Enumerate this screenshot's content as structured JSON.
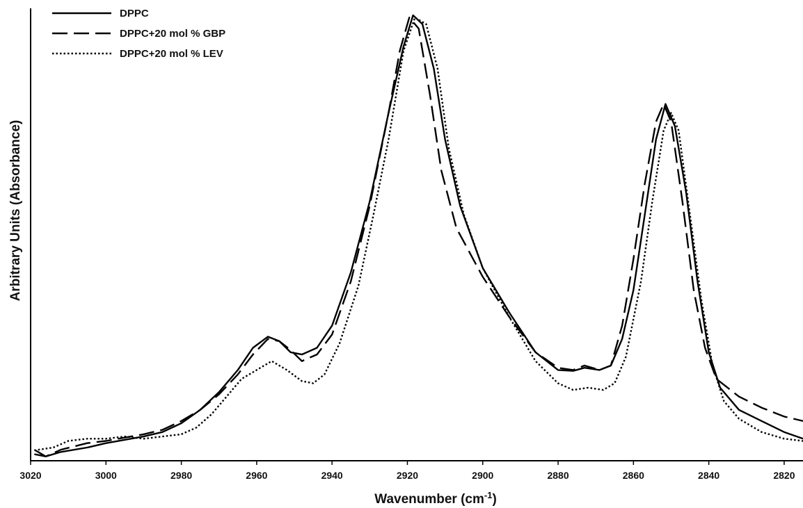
{
  "chart_data": {
    "type": "line",
    "title": "",
    "xlabel": "Wavenumber (cm⁻¹)",
    "ylabel": "Arbitrary Units (Absorbance)",
    "xlim": [
      3020,
      2815
    ],
    "x_reversed": true,
    "ylim": [
      0,
      1.0
    ],
    "y_tick_labels": false,
    "x_ticks": [
      3020,
      3000,
      2980,
      2960,
      2940,
      2920,
      2900,
      2880,
      2860,
      2840,
      2820
    ],
    "grid": false,
    "legend": {
      "placement": "top-left"
    },
    "series": [
      {
        "name": "DPPC",
        "style": "solid",
        "points": [
          [
            3019,
            0.02
          ],
          [
            3016,
            0.005
          ],
          [
            3012,
            0.015
          ],
          [
            3005,
            0.025
          ],
          [
            3000,
            0.035
          ],
          [
            2990,
            0.05
          ],
          [
            2985,
            0.06
          ],
          [
            2980,
            0.08
          ],
          [
            2975,
            0.11
          ],
          [
            2970,
            0.15
          ],
          [
            2965,
            0.2
          ],
          [
            2961,
            0.25
          ],
          [
            2957,
            0.275
          ],
          [
            2954,
            0.265
          ],
          [
            2951,
            0.24
          ],
          [
            2948,
            0.235
          ],
          [
            2944,
            0.25
          ],
          [
            2940,
            0.3
          ],
          [
            2935,
            0.42
          ],
          [
            2930,
            0.58
          ],
          [
            2925,
            0.78
          ],
          [
            2921,
            0.93
          ],
          [
            2918.5,
            1.0
          ],
          [
            2916,
            0.98
          ],
          [
            2913,
            0.88
          ],
          [
            2910,
            0.72
          ],
          [
            2906,
            0.57
          ],
          [
            2900,
            0.43
          ],
          [
            2893,
            0.33
          ],
          [
            2886,
            0.24
          ],
          [
            2880,
            0.2
          ],
          [
            2876,
            0.198
          ],
          [
            2873,
            0.205
          ],
          [
            2869,
            0.2
          ],
          [
            2866,
            0.21
          ],
          [
            2863,
            0.27
          ],
          [
            2860,
            0.38
          ],
          [
            2857,
            0.55
          ],
          [
            2854,
            0.72
          ],
          [
            2851.5,
            0.8
          ],
          [
            2849,
            0.75
          ],
          [
            2846,
            0.6
          ],
          [
            2843,
            0.4
          ],
          [
            2840,
            0.24
          ],
          [
            2837,
            0.16
          ],
          [
            2832,
            0.11
          ],
          [
            2826,
            0.085
          ],
          [
            2820,
            0.06
          ],
          [
            2815,
            0.045
          ]
        ]
      },
      {
        "name": "DPPC+20 mol % GBP",
        "style": "dashed",
        "points": [
          [
            3019,
            0.01
          ],
          [
            3016,
            0.005
          ],
          [
            3012,
            0.02
          ],
          [
            3005,
            0.035
          ],
          [
            3000,
            0.04
          ],
          [
            2990,
            0.055
          ],
          [
            2985,
            0.065
          ],
          [
            2980,
            0.085
          ],
          [
            2975,
            0.11
          ],
          [
            2970,
            0.145
          ],
          [
            2965,
            0.19
          ],
          [
            2961,
            0.235
          ],
          [
            2957,
            0.27
          ],
          [
            2954,
            0.265
          ],
          [
            2951,
            0.245
          ],
          [
            2948,
            0.22
          ],
          [
            2944,
            0.235
          ],
          [
            2940,
            0.28
          ],
          [
            2935,
            0.4
          ],
          [
            2930,
            0.57
          ],
          [
            2925,
            0.78
          ],
          [
            2922,
            0.92
          ],
          [
            2919.5,
            0.995
          ],
          [
            2917,
            0.97
          ],
          [
            2914,
            0.82
          ],
          [
            2911,
            0.65
          ],
          [
            2907,
            0.52
          ],
          [
            2900,
            0.41
          ],
          [
            2893,
            0.32
          ],
          [
            2886,
            0.24
          ],
          [
            2880,
            0.205
          ],
          [
            2876,
            0.2
          ],
          [
            2873,
            0.21
          ],
          [
            2869,
            0.2
          ],
          [
            2866,
            0.21
          ],
          [
            2863,
            0.3
          ],
          [
            2860,
            0.45
          ],
          [
            2857,
            0.62
          ],
          [
            2854,
            0.76
          ],
          [
            2852,
            0.8
          ],
          [
            2850,
            0.76
          ],
          [
            2847,
            0.58
          ],
          [
            2844,
            0.38
          ],
          [
            2841,
            0.25
          ],
          [
            2838,
            0.18
          ],
          [
            2832,
            0.14
          ],
          [
            2826,
            0.115
          ],
          [
            2820,
            0.095
          ],
          [
            2815,
            0.085
          ]
        ]
      },
      {
        "name": "DPPC+20 mol % LEV",
        "style": "dotted",
        "points": [
          [
            3018,
            0.02
          ],
          [
            3014,
            0.025
          ],
          [
            3010,
            0.04
          ],
          [
            3005,
            0.045
          ],
          [
            3000,
            0.045
          ],
          [
            2995,
            0.05
          ],
          [
            2990,
            0.045
          ],
          [
            2985,
            0.05
          ],
          [
            2980,
            0.055
          ],
          [
            2976,
            0.07
          ],
          [
            2972,
            0.1
          ],
          [
            2968,
            0.14
          ],
          [
            2964,
            0.18
          ],
          [
            2960,
            0.2
          ],
          [
            2956,
            0.22
          ],
          [
            2952,
            0.2
          ],
          [
            2948,
            0.175
          ],
          [
            2945,
            0.17
          ],
          [
            2942,
            0.19
          ],
          [
            2938,
            0.26
          ],
          [
            2933,
            0.39
          ],
          [
            2929,
            0.55
          ],
          [
            2925,
            0.72
          ],
          [
            2921,
            0.92
          ],
          [
            2918,
            0.995
          ],
          [
            2915,
            0.98
          ],
          [
            2912,
            0.88
          ],
          [
            2909,
            0.7
          ],
          [
            2905,
            0.55
          ],
          [
            2900,
            0.43
          ],
          [
            2893,
            0.32
          ],
          [
            2886,
            0.22
          ],
          [
            2880,
            0.17
          ],
          [
            2876,
            0.155
          ],
          [
            2872,
            0.16
          ],
          [
            2868,
            0.155
          ],
          [
            2865,
            0.17
          ],
          [
            2862,
            0.23
          ],
          [
            2858,
            0.4
          ],
          [
            2855,
            0.58
          ],
          [
            2852,
            0.74
          ],
          [
            2850,
            0.78
          ],
          [
            2848,
            0.74
          ],
          [
            2845,
            0.55
          ],
          [
            2842,
            0.36
          ],
          [
            2839,
            0.21
          ],
          [
            2836,
            0.13
          ],
          [
            2832,
            0.09
          ],
          [
            2826,
            0.06
          ],
          [
            2820,
            0.045
          ],
          [
            2815,
            0.04
          ]
        ]
      }
    ]
  }
}
